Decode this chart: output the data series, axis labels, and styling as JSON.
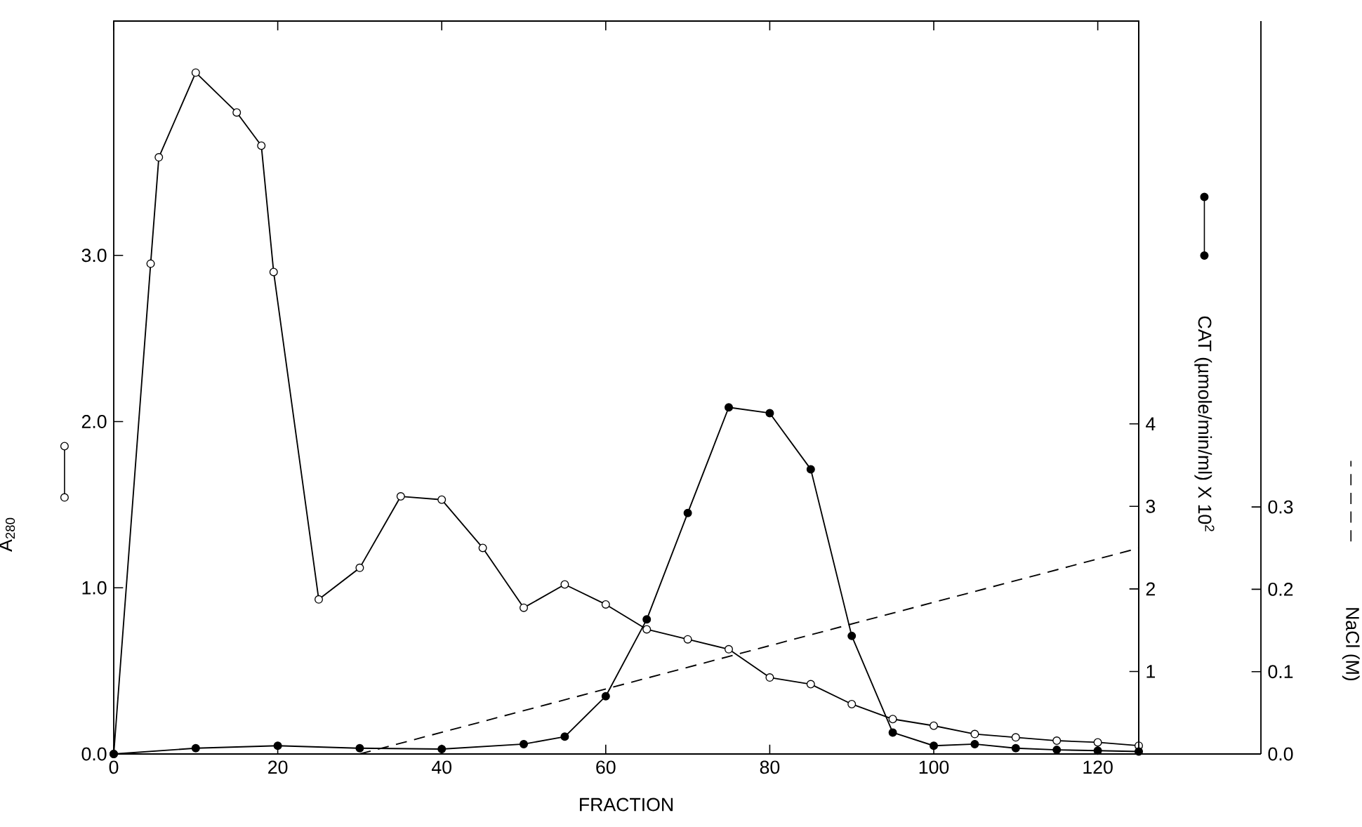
{
  "chart_data": {
    "type": "line",
    "xlabel": "FRACTION",
    "ylabel": "A$_{280}$",
    "y2label": "CAT  (µmole/min/ml)  X 10$^{2}$",
    "y3label": "NaCl   (M)",
    "xlim": [
      0,
      125
    ],
    "xticks": [
      0,
      20,
      40,
      60,
      80,
      100,
      120
    ],
    "ylim": [
      0,
      4.41
    ],
    "yticks": [
      {
        "value": 0,
        "label": "0.0"
      },
      {
        "value": 1,
        "label": "1.0"
      },
      {
        "value": 2,
        "label": "2.0"
      },
      {
        "value": 3,
        "label": "3.0"
      }
    ],
    "y2lim": [
      0,
      8.88
    ],
    "y2ticks": [
      1,
      2,
      3,
      4
    ],
    "y3lim": [
      0,
      0.89
    ],
    "y3ticks": [
      {
        "value": 0,
        "label": "0.0"
      },
      0.1,
      0.2,
      0.3
    ],
    "grid": false,
    "series": [
      {
        "color": "#000000",
        "marker": "circle",
        "line_style": "solid",
        "x": [
          0,
          4.5,
          5.5,
          10,
          15,
          18,
          19.5,
          25,
          30,
          35,
          40,
          45,
          50,
          55,
          60,
          65,
          70,
          75,
          80,
          85,
          90,
          95,
          100,
          105,
          110,
          115,
          120,
          125
        ],
        "values": [
          0,
          2.95,
          3.59,
          4.1,
          3.86,
          3.66,
          2.9,
          0.93,
          1.12,
          1.55,
          1.53,
          1.24,
          0.88,
          1.02,
          0.9,
          0.75,
          0.69,
          0.63,
          0.46,
          0.42,
          0.3,
          0.21,
          0.17,
          0.12,
          0.1,
          0.08,
          0.07,
          0.05
        ]
      },
      {
        "color": "#000000",
        "marker": "circle",
        "line_style": "solid",
        "axis": "y2",
        "x": [
          0,
          10,
          20,
          30,
          40,
          50,
          55,
          60,
          65,
          70,
          75,
          80,
          85,
          90,
          95,
          100,
          105,
          110,
          115,
          120,
          125
        ],
        "values": [
          0,
          0.07,
          0.1,
          0.07,
          0.06,
          0.12,
          0.21,
          0.7,
          1.63,
          2.92,
          4.2,
          4.13,
          3.45,
          1.43,
          0.26,
          0.1,
          0.12,
          0.07,
          0.05,
          0.04,
          0.03
        ]
      },
      {
        "color": "#000000",
        "marker": "none",
        "line_style": "dashed",
        "axis": "y3",
        "x": [
          30,
          125
        ],
        "values": [
          0,
          0.25
        ]
      }
    ]
  }
}
